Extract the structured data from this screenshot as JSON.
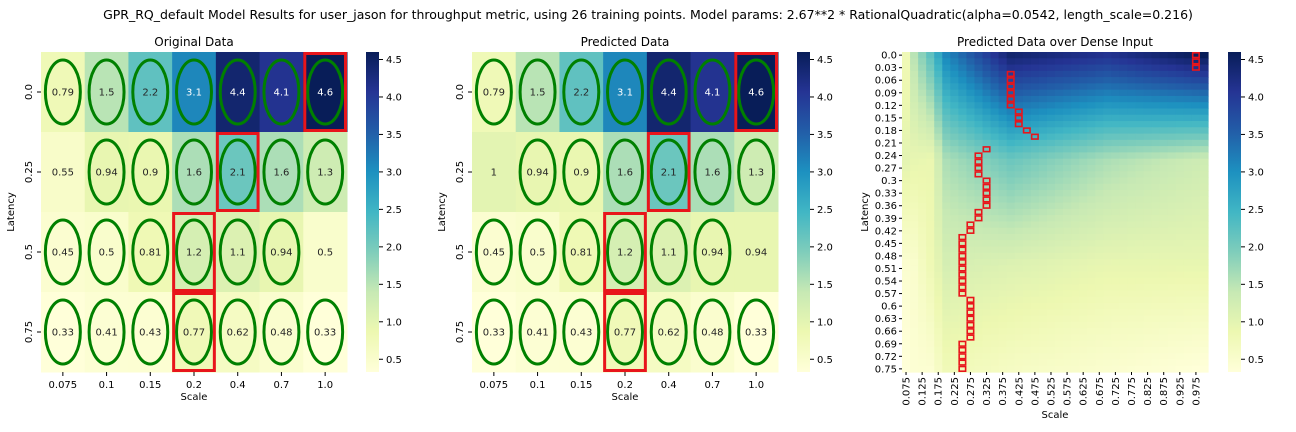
{
  "figure": {
    "suptitle": "GPR_RQ_default Model Results for user_jason for throughput metric, using 26 training points. Model params: 2.67**2 * RationalQuadratic(alpha=0.0542, length_scale=0.216)"
  },
  "colormap": {
    "name": "YlGnBu",
    "stops": [
      "#ffffd9",
      "#edf8b1",
      "#c7e9b4",
      "#7fcdbb",
      "#41b6c4",
      "#1d91c0",
      "#225ea8",
      "#253494",
      "#081d58"
    ]
  },
  "styles": {
    "ellipse_color": "#008000",
    "box_color": "#e8151b"
  },
  "chart_data": [
    {
      "type": "heatmap",
      "title": "Original Data",
      "xlabel": "Scale",
      "ylabel": "Latency",
      "x_categories": [
        "0.075",
        "0.1",
        "0.15",
        "0.2",
        "0.4",
        "0.7",
        "1.0"
      ],
      "y_categories": [
        "0.0",
        "0.25",
        "0.5",
        "0.75"
      ],
      "values": [
        [
          0.79,
          1.5,
          2.2,
          3.1,
          4.4,
          4.1,
          4.6
        ],
        [
          0.55,
          0.94,
          0.9,
          1.6,
          2.1,
          1.6,
          1.3
        ],
        [
          0.45,
          0.5,
          0.81,
          1.2,
          1.1,
          0.94,
          0.5
        ],
        [
          0.33,
          0.41,
          0.43,
          0.77,
          0.62,
          0.48,
          0.33
        ]
      ],
      "annotations": [
        [
          "0.79",
          "1.5",
          "2.2",
          "3.1",
          "4.4",
          "4.1",
          "4.6"
        ],
        [
          "0.55",
          "0.94",
          "0.9",
          "1.6",
          "2.1",
          "1.6",
          "1.3"
        ],
        [
          "0.45",
          "0.5",
          "0.81",
          "1.2",
          "1.1",
          "0.94",
          "0.5"
        ],
        [
          "0.33",
          "0.41",
          "0.43",
          "0.77",
          "0.62",
          "0.48",
          "0.33"
        ]
      ],
      "ellipse_cells": [
        [
          0,
          0
        ],
        [
          0,
          1
        ],
        [
          0,
          2
        ],
        [
          0,
          3
        ],
        [
          0,
          4
        ],
        [
          0,
          5
        ],
        [
          0,
          6
        ],
        [
          1,
          1
        ],
        [
          1,
          2
        ],
        [
          1,
          3
        ],
        [
          1,
          4
        ],
        [
          1,
          5
        ],
        [
          1,
          6
        ],
        [
          2,
          0
        ],
        [
          2,
          1
        ],
        [
          2,
          2
        ],
        [
          2,
          3
        ],
        [
          2,
          4
        ],
        [
          2,
          5
        ],
        [
          3,
          0
        ],
        [
          3,
          1
        ],
        [
          3,
          2
        ],
        [
          3,
          3
        ],
        [
          3,
          4
        ],
        [
          3,
          5
        ],
        [
          3,
          6
        ]
      ],
      "highlight_cells": [
        [
          0,
          6
        ],
        [
          1,
          4
        ],
        [
          2,
          3
        ],
        [
          3,
          3
        ]
      ],
      "colorbar": {
        "min": 0.33,
        "max": 4.6,
        "ticks": [
          "0.5",
          "1.0",
          "1.5",
          "2.0",
          "2.5",
          "3.0",
          "3.5",
          "4.0",
          "4.5"
        ]
      }
    },
    {
      "type": "heatmap",
      "title": "Predicted Data",
      "xlabel": "Scale",
      "ylabel": "Latency",
      "x_categories": [
        "0.075",
        "0.1",
        "0.15",
        "0.2",
        "0.4",
        "0.7",
        "1.0"
      ],
      "y_categories": [
        "0.0",
        "0.25",
        "0.5",
        "0.75"
      ],
      "values": [
        [
          0.79,
          1.5,
          2.2,
          3.1,
          4.4,
          4.1,
          4.6
        ],
        [
          1.0,
          0.94,
          0.9,
          1.6,
          2.1,
          1.6,
          1.3
        ],
        [
          0.45,
          0.5,
          0.81,
          1.2,
          1.1,
          0.94,
          0.94
        ],
        [
          0.33,
          0.41,
          0.43,
          0.77,
          0.62,
          0.48,
          0.33
        ]
      ],
      "annotations": [
        [
          "0.79",
          "1.5",
          "2.2",
          "3.1",
          "4.4",
          "4.1",
          "4.6"
        ],
        [
          "1",
          "0.94",
          "0.9",
          "1.6",
          "2.1",
          "1.6",
          "1.3"
        ],
        [
          "0.45",
          "0.5",
          "0.81",
          "1.2",
          "1.1",
          "0.94",
          "0.94"
        ],
        [
          "0.33",
          "0.41",
          "0.43",
          "0.77",
          "0.62",
          "0.48",
          "0.33"
        ]
      ],
      "ellipse_cells": [
        [
          0,
          0
        ],
        [
          0,
          1
        ],
        [
          0,
          2
        ],
        [
          0,
          3
        ],
        [
          0,
          4
        ],
        [
          0,
          5
        ],
        [
          0,
          6
        ],
        [
          1,
          1
        ],
        [
          1,
          2
        ],
        [
          1,
          3
        ],
        [
          1,
          4
        ],
        [
          1,
          5
        ],
        [
          1,
          6
        ],
        [
          2,
          0
        ],
        [
          2,
          1
        ],
        [
          2,
          2
        ],
        [
          2,
          3
        ],
        [
          2,
          4
        ],
        [
          2,
          5
        ],
        [
          3,
          0
        ],
        [
          3,
          1
        ],
        [
          3,
          2
        ],
        [
          3,
          3
        ],
        [
          3,
          4
        ],
        [
          3,
          5
        ],
        [
          3,
          6
        ]
      ],
      "highlight_cells": [
        [
          0,
          6
        ],
        [
          1,
          4
        ],
        [
          2,
          3
        ],
        [
          3,
          3
        ]
      ],
      "colorbar": {
        "min": 0.33,
        "max": 4.6,
        "ticks": [
          "0.5",
          "1.0",
          "1.5",
          "2.0",
          "2.5",
          "3.0",
          "3.5",
          "4.0",
          "4.5"
        ]
      }
    },
    {
      "type": "heatmap",
      "title": "Predicted Data over Dense Input",
      "xlabel": "Scale",
      "ylabel": "Latency",
      "x_categories": [
        "0.075",
        "0.125",
        "0.175",
        "0.225",
        "0.275",
        "0.325",
        "0.375",
        "0.425",
        "0.475",
        "0.525",
        "0.575",
        "0.625",
        "0.675",
        "0.725",
        "0.775",
        "0.825",
        "0.875",
        "0.925",
        "0.975"
      ],
      "y_categories": [
        "0.0",
        "0.03",
        "0.06",
        "0.09",
        "0.12",
        "0.15",
        "0.18",
        "0.21",
        "0.24",
        "0.27",
        "0.3",
        "0.33",
        "0.36",
        "0.39",
        "0.42",
        "0.45",
        "0.48",
        "0.51",
        "0.54",
        "0.57",
        "0.6",
        "0.63",
        "0.66",
        "0.69",
        "0.72",
        "0.75"
      ],
      "x_range": [
        0.075,
        1.0
      ],
      "y_range": [
        0.0,
        0.75
      ],
      "value_anchor_x": [
        0.075,
        0.1,
        0.15,
        0.2,
        0.4,
        0.7,
        1.0
      ],
      "value_anchor_y": [
        0.0,
        0.25,
        0.5,
        0.75
      ],
      "highlight_path": [
        [
          0.0,
          0.975
        ],
        [
          0.015,
          0.975
        ],
        [
          0.03,
          0.975
        ],
        [
          0.045,
          0.4
        ],
        [
          0.06,
          0.4
        ],
        [
          0.075,
          0.4
        ],
        [
          0.09,
          0.4
        ],
        [
          0.105,
          0.4
        ],
        [
          0.12,
          0.4
        ],
        [
          0.135,
          0.425
        ],
        [
          0.15,
          0.425
        ],
        [
          0.165,
          0.425
        ],
        [
          0.18,
          0.45
        ],
        [
          0.195,
          0.475
        ],
        [
          0.225,
          0.325
        ],
        [
          0.24,
          0.3
        ],
        [
          0.255,
          0.3
        ],
        [
          0.27,
          0.3
        ],
        [
          0.285,
          0.3
        ],
        [
          0.3,
          0.325
        ],
        [
          0.315,
          0.325
        ],
        [
          0.33,
          0.325
        ],
        [
          0.345,
          0.325
        ],
        [
          0.36,
          0.325
        ],
        [
          0.375,
          0.3
        ],
        [
          0.39,
          0.3
        ],
        [
          0.405,
          0.275
        ],
        [
          0.42,
          0.275
        ],
        [
          0.435,
          0.25
        ],
        [
          0.45,
          0.25
        ],
        [
          0.465,
          0.25
        ],
        [
          0.48,
          0.25
        ],
        [
          0.495,
          0.25
        ],
        [
          0.51,
          0.25
        ],
        [
          0.525,
          0.25
        ],
        [
          0.54,
          0.25
        ],
        [
          0.555,
          0.25
        ],
        [
          0.57,
          0.25
        ],
        [
          0.585,
          0.275
        ],
        [
          0.6,
          0.275
        ],
        [
          0.615,
          0.275
        ],
        [
          0.63,
          0.275
        ],
        [
          0.645,
          0.275
        ],
        [
          0.66,
          0.275
        ],
        [
          0.675,
          0.275
        ],
        [
          0.69,
          0.25
        ],
        [
          0.705,
          0.25
        ],
        [
          0.72,
          0.25
        ],
        [
          0.735,
          0.25
        ],
        [
          0.75,
          0.25
        ]
      ],
      "colorbar": {
        "min": 0.33,
        "max": 4.6,
        "ticks": [
          "0.5",
          "1.0",
          "1.5",
          "2.0",
          "2.5",
          "3.0",
          "3.5",
          "4.0",
          "4.5"
        ]
      }
    }
  ]
}
